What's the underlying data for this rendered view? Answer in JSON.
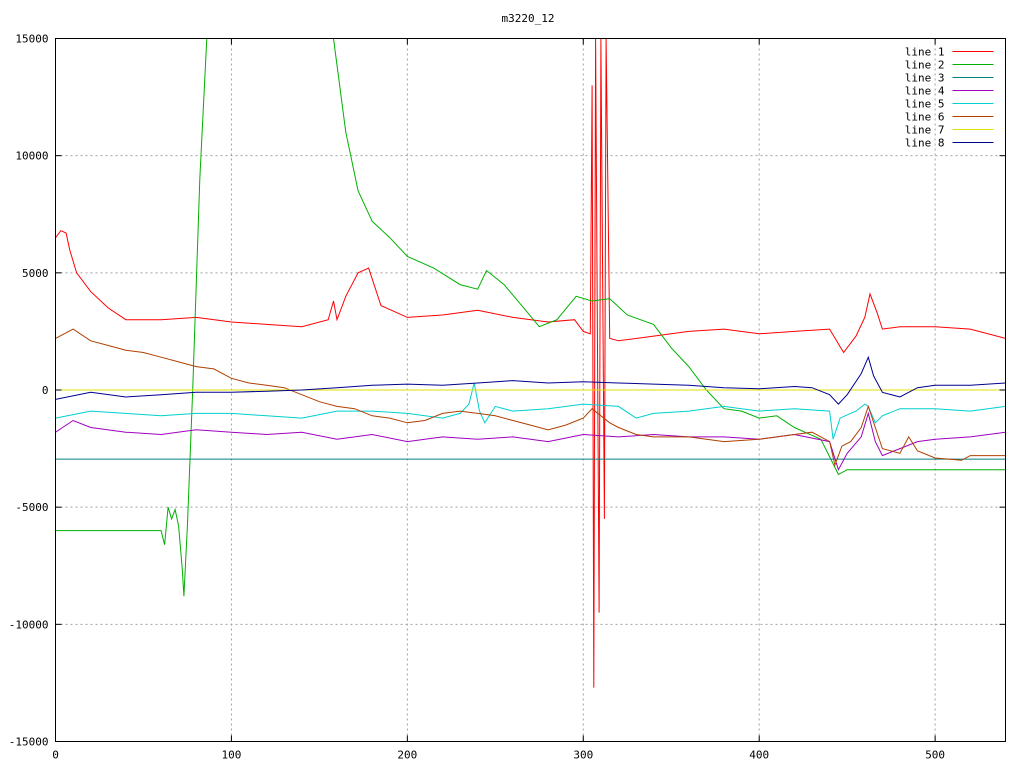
{
  "chart_data": {
    "type": "line",
    "title": "m3220_12",
    "xlabel": "",
    "ylabel": "",
    "xlim": [
      0,
      540
    ],
    "ylim": [
      -15000,
      15000
    ],
    "x_ticks": [
      0,
      100,
      200,
      300,
      400,
      500
    ],
    "y_ticks": [
      -15000,
      -10000,
      -5000,
      0,
      5000,
      10000,
      15000
    ],
    "grid": true,
    "legend_position": "top-right",
    "series": [
      {
        "name": "line 1",
        "color": "#ff0000",
        "points": [
          [
            0,
            6500
          ],
          [
            3,
            6800
          ],
          [
            6,
            6700
          ],
          [
            8,
            6000
          ],
          [
            12,
            5000
          ],
          [
            20,
            4200
          ],
          [
            30,
            3500
          ],
          [
            40,
            3000
          ],
          [
            60,
            3000
          ],
          [
            80,
            3100
          ],
          [
            100,
            2900
          ],
          [
            120,
            2800
          ],
          [
            140,
            2700
          ],
          [
            155,
            3000
          ],
          [
            158,
            3800
          ],
          [
            160,
            3000
          ],
          [
            165,
            4000
          ],
          [
            172,
            5000
          ],
          [
            178,
            5200
          ],
          [
            185,
            3600
          ],
          [
            200,
            3100
          ],
          [
            220,
            3200
          ],
          [
            240,
            3400
          ],
          [
            260,
            3100
          ],
          [
            280,
            2900
          ],
          [
            295,
            3000
          ],
          [
            300,
            2500
          ],
          [
            304,
            2400
          ],
          [
            305,
            13000
          ],
          [
            306,
            -12700
          ],
          [
            307,
            15000
          ],
          [
            309,
            -9500
          ],
          [
            310,
            15000
          ],
          [
            312,
            -5500
          ],
          [
            313,
            15000
          ],
          [
            315,
            2200
          ],
          [
            320,
            2100
          ],
          [
            340,
            2300
          ],
          [
            360,
            2500
          ],
          [
            380,
            2600
          ],
          [
            400,
            2400
          ],
          [
            420,
            2500
          ],
          [
            440,
            2600
          ],
          [
            448,
            1600
          ],
          [
            455,
            2300
          ],
          [
            460,
            3100
          ],
          [
            463,
            4100
          ],
          [
            467,
            3300
          ],
          [
            470,
            2600
          ],
          [
            480,
            2700
          ],
          [
            500,
            2700
          ],
          [
            520,
            2600
          ],
          [
            540,
            2200
          ]
        ]
      },
      {
        "name": "line 2",
        "color": "#00b000",
        "points": [
          [
            0,
            -6000
          ],
          [
            60,
            -6000
          ],
          [
            62,
            -6600
          ],
          [
            64,
            -5000
          ],
          [
            66,
            -5500
          ],
          [
            68,
            -5100
          ],
          [
            70,
            -5800
          ],
          [
            72,
            -7600
          ],
          [
            73,
            -8800
          ],
          [
            75,
            -5800
          ],
          [
            78,
            0
          ],
          [
            82,
            9000
          ],
          [
            86,
            15000
          ],
          [
            158,
            15000
          ],
          [
            165,
            11000
          ],
          [
            172,
            8500
          ],
          [
            180,
            7200
          ],
          [
            190,
            6500
          ],
          [
            200,
            5700
          ],
          [
            215,
            5200
          ],
          [
            230,
            4500
          ],
          [
            240,
            4300
          ],
          [
            245,
            5100
          ],
          [
            255,
            4500
          ],
          [
            265,
            3600
          ],
          [
            275,
            2700
          ],
          [
            285,
            3000
          ],
          [
            296,
            4000
          ],
          [
            305,
            3800
          ],
          [
            315,
            3900
          ],
          [
            325,
            3200
          ],
          [
            340,
            2800
          ],
          [
            350,
            1800
          ],
          [
            360,
            1000
          ],
          [
            370,
            0
          ],
          [
            380,
            -800
          ],
          [
            390,
            -900
          ],
          [
            400,
            -1200
          ],
          [
            410,
            -1100
          ],
          [
            420,
            -1600
          ],
          [
            435,
            -2100
          ],
          [
            445,
            -3600
          ],
          [
            450,
            -3400
          ],
          [
            460,
            -3400
          ],
          [
            540,
            -3400
          ]
        ]
      },
      {
        "name": "line 3",
        "color": "#008080",
        "points": [
          [
            0,
            -2950
          ],
          [
            540,
            -2950
          ]
        ]
      },
      {
        "name": "line 4",
        "color": "#a000c0",
        "points": [
          [
            0,
            -1800
          ],
          [
            10,
            -1300
          ],
          [
            20,
            -1600
          ],
          [
            40,
            -1800
          ],
          [
            60,
            -1900
          ],
          [
            80,
            -1700
          ],
          [
            100,
            -1800
          ],
          [
            120,
            -1900
          ],
          [
            140,
            -1800
          ],
          [
            160,
            -2100
          ],
          [
            180,
            -1900
          ],
          [
            200,
            -2200
          ],
          [
            220,
            -2000
          ],
          [
            240,
            -2100
          ],
          [
            260,
            -2000
          ],
          [
            280,
            -2200
          ],
          [
            300,
            -1900
          ],
          [
            320,
            -2000
          ],
          [
            340,
            -1900
          ],
          [
            360,
            -2000
          ],
          [
            380,
            -2000
          ],
          [
            400,
            -2100
          ],
          [
            420,
            -1900
          ],
          [
            440,
            -2200
          ],
          [
            445,
            -3400
          ],
          [
            450,
            -2700
          ],
          [
            458,
            -2000
          ],
          [
            462,
            -1000
          ],
          [
            466,
            -2200
          ],
          [
            470,
            -2800
          ],
          [
            480,
            -2500
          ],
          [
            490,
            -2200
          ],
          [
            500,
            -2100
          ],
          [
            520,
            -2000
          ],
          [
            540,
            -1800
          ]
        ]
      },
      {
        "name": "line 5",
        "color": "#00d0d0",
        "points": [
          [
            0,
            -1200
          ],
          [
            20,
            -900
          ],
          [
            40,
            -1000
          ],
          [
            60,
            -1100
          ],
          [
            80,
            -1000
          ],
          [
            100,
            -1000
          ],
          [
            120,
            -1100
          ],
          [
            140,
            -1200
          ],
          [
            160,
            -900
          ],
          [
            180,
            -900
          ],
          [
            200,
            -1000
          ],
          [
            220,
            -1200
          ],
          [
            230,
            -1000
          ],
          [
            235,
            -600
          ],
          [
            238,
            300
          ],
          [
            241,
            -900
          ],
          [
            244,
            -1400
          ],
          [
            250,
            -700
          ],
          [
            260,
            -900
          ],
          [
            280,
            -800
          ],
          [
            300,
            -600
          ],
          [
            320,
            -700
          ],
          [
            330,
            -1200
          ],
          [
            340,
            -1000
          ],
          [
            360,
            -900
          ],
          [
            380,
            -700
          ],
          [
            400,
            -900
          ],
          [
            420,
            -800
          ],
          [
            440,
            -900
          ],
          [
            442,
            -2100
          ],
          [
            446,
            -1200
          ],
          [
            455,
            -900
          ],
          [
            460,
            -600
          ],
          [
            462,
            -700
          ],
          [
            466,
            -1400
          ],
          [
            470,
            -1100
          ],
          [
            480,
            -800
          ],
          [
            500,
            -800
          ],
          [
            520,
            -900
          ],
          [
            540,
            -700
          ]
        ]
      },
      {
        "name": "line 6",
        "color": "#b04000",
        "points": [
          [
            0,
            2200
          ],
          [
            10,
            2600
          ],
          [
            20,
            2100
          ],
          [
            30,
            1900
          ],
          [
            40,
            1700
          ],
          [
            50,
            1600
          ],
          [
            60,
            1400
          ],
          [
            70,
            1200
          ],
          [
            80,
            1000
          ],
          [
            90,
            900
          ],
          [
            100,
            500
          ],
          [
            110,
            300
          ],
          [
            120,
            200
          ],
          [
            130,
            100
          ],
          [
            140,
            -200
          ],
          [
            150,
            -500
          ],
          [
            160,
            -700
          ],
          [
            170,
            -800
          ],
          [
            180,
            -1100
          ],
          [
            190,
            -1200
          ],
          [
            200,
            -1400
          ],
          [
            210,
            -1300
          ],
          [
            220,
            -1000
          ],
          [
            230,
            -900
          ],
          [
            240,
            -1000
          ],
          [
            250,
            -1100
          ],
          [
            260,
            -1300
          ],
          [
            270,
            -1500
          ],
          [
            280,
            -1700
          ],
          [
            290,
            -1500
          ],
          [
            300,
            -1200
          ],
          [
            305,
            -800
          ],
          [
            310,
            -1100
          ],
          [
            315,
            -1400
          ],
          [
            320,
            -1600
          ],
          [
            330,
            -1900
          ],
          [
            340,
            -2000
          ],
          [
            360,
            -2000
          ],
          [
            380,
            -2200
          ],
          [
            400,
            -2100
          ],
          [
            420,
            -1900
          ],
          [
            430,
            -1800
          ],
          [
            440,
            -2200
          ],
          [
            443,
            -3200
          ],
          [
            447,
            -2400
          ],
          [
            452,
            -2200
          ],
          [
            458,
            -1600
          ],
          [
            462,
            -700
          ],
          [
            466,
            -1600
          ],
          [
            470,
            -2500
          ],
          [
            480,
            -2700
          ],
          [
            485,
            -2000
          ],
          [
            490,
            -2600
          ],
          [
            500,
            -2900
          ],
          [
            515,
            -3000
          ],
          [
            520,
            -2800
          ],
          [
            540,
            -2800
          ]
        ]
      },
      {
        "name": "line 7",
        "color": "#e0e000",
        "points": [
          [
            0,
            0
          ],
          [
            540,
            0
          ]
        ]
      },
      {
        "name": "line 8",
        "color": "#000090",
        "points": [
          [
            0,
            -400
          ],
          [
            20,
            -100
          ],
          [
            40,
            -300
          ],
          [
            60,
            -200
          ],
          [
            80,
            -100
          ],
          [
            100,
            -100
          ],
          [
            120,
            -50
          ],
          [
            140,
            0
          ],
          [
            160,
            100
          ],
          [
            180,
            200
          ],
          [
            200,
            250
          ],
          [
            220,
            200
          ],
          [
            240,
            300
          ],
          [
            260,
            400
          ],
          [
            280,
            300
          ],
          [
            300,
            350
          ],
          [
            320,
            300
          ],
          [
            340,
            250
          ],
          [
            360,
            200
          ],
          [
            380,
            100
          ],
          [
            400,
            50
          ],
          [
            420,
            150
          ],
          [
            430,
            100
          ],
          [
            440,
            -200
          ],
          [
            445,
            -600
          ],
          [
            450,
            -200
          ],
          [
            458,
            700
          ],
          [
            462,
            1400
          ],
          [
            465,
            600
          ],
          [
            470,
            -100
          ],
          [
            480,
            -300
          ],
          [
            490,
            100
          ],
          [
            500,
            200
          ],
          [
            520,
            200
          ],
          [
            540,
            300
          ]
        ]
      }
    ]
  }
}
